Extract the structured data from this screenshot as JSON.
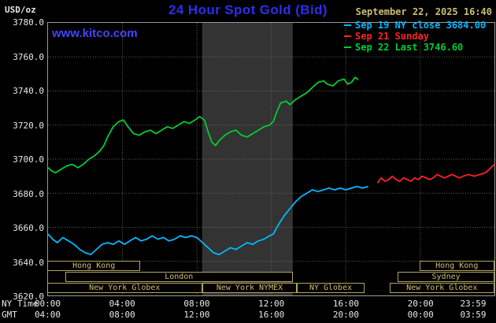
{
  "header": {
    "unit_label": "USD/oz",
    "title": "24 Hour Spot Gold (Bid)",
    "datetime": "September 22, 2025 16:40",
    "watermark": "www.kitco.com"
  },
  "legend": [
    {
      "id": "sep19-ny-close",
      "label": "Sep 19 NY close 3684.00",
      "color": "#00b8ff"
    },
    {
      "id": "sep21-sunday",
      "label": "Sep 21 Sunday",
      "color": "#ff2222"
    },
    {
      "id": "sep22-last",
      "label": "Sep 22 Last 3746.60",
      "color": "#00cc33"
    }
  ],
  "axes": {
    "y_ticks": [
      "3780.0",
      "3760.0",
      "3740.0",
      "3720.0",
      "3700.0",
      "3680.0",
      "3660.0",
      "3640.0",
      "3620.0"
    ],
    "x_rows": [
      {
        "label": "NY Time",
        "ticks": [
          "00:00",
          "04:00",
          "08:00",
          "12:00",
          "16:00",
          "20:00",
          "23:59"
        ]
      },
      {
        "label": "GMT",
        "ticks": [
          "04:00",
          "08:00",
          "12:00",
          "16:00",
          "20:00",
          "00:00",
          "03:59"
        ]
      }
    ]
  },
  "sessions": {
    "rows": [
      {
        "boxes": [
          {
            "label": "Hong Kong",
            "start": 0,
            "end": 5.0
          },
          {
            "label": "Hong Kong",
            "start": 19.95,
            "end": 23.983
          }
        ]
      },
      {
        "boxes": [
          {
            "label": "London",
            "start": 0.97,
            "end": 13.15
          },
          {
            "label": "Sydney",
            "start": 18.8,
            "end": 23.983
          }
        ]
      },
      {
        "boxes": [
          {
            "label": "New York Globex",
            "start": 0,
            "end": 8.3
          },
          {
            "label": "New York NYMEX",
            "start": 8.3,
            "end": 13.4
          },
          {
            "label": "NY Globex",
            "start": 13.4,
            "end": 17.0
          },
          {
            "label": "New York Globex",
            "start": 18.35,
            "end": 23.983
          }
        ]
      }
    ]
  },
  "chart_data": {
    "type": "line",
    "title": "24 Hour Spot Gold (Bid)",
    "subtitle": "September 22, 2025 16:40",
    "ylabel": "USD/oz",
    "grid": true,
    "legend_position": "top-right",
    "y_axis": {
      "range": [
        3620,
        3780
      ],
      "tick_step": 20
    },
    "x_axis": {
      "label_rows": [
        "NY Time",
        "GMT"
      ],
      "range_hours": [
        0,
        23.983
      ],
      "tick_hours": [
        0,
        4,
        8,
        12,
        16,
        20,
        23.983
      ],
      "tick_labels_ny": [
        "00:00",
        "04:00",
        "08:00",
        "12:00",
        "16:00",
        "20:00",
        "23:59"
      ],
      "tick_labels_gmt": [
        "04:00",
        "08:00",
        "12:00",
        "16:00",
        "20:00",
        "00:00",
        "03:59"
      ],
      "grid_hours": [
        4,
        8,
        12,
        16,
        20
      ]
    },
    "nymex_band_hours": [
      8.28,
      13.15
    ],
    "band_color": "#333333",
    "grid_color": "#666666",
    "series": [
      {
        "id": "sep19-ny-close",
        "name": "Sep 19 NY close 3684.00",
        "close_value": 3684.0,
        "color": "#00b8ff",
        "points": [
          [
            0,
            3656
          ],
          [
            0.25,
            3653
          ],
          [
            0.5,
            3651
          ],
          [
            0.8,
            3654
          ],
          [
            1.1,
            3652
          ],
          [
            1.4,
            3650
          ],
          [
            1.7,
            3647
          ],
          [
            2,
            3645
          ],
          [
            2.3,
            3644
          ],
          [
            2.6,
            3647
          ],
          [
            2.9,
            3650
          ],
          [
            3.2,
            3651
          ],
          [
            3.5,
            3650
          ],
          [
            3.8,
            3652
          ],
          [
            4.1,
            3650
          ],
          [
            4.4,
            3652
          ],
          [
            4.7,
            3654
          ],
          [
            5,
            3652
          ],
          [
            5.3,
            3653
          ],
          [
            5.6,
            3655
          ],
          [
            5.9,
            3653
          ],
          [
            6.2,
            3654
          ],
          [
            6.5,
            3652
          ],
          [
            6.8,
            3653
          ],
          [
            7.1,
            3655
          ],
          [
            7.4,
            3654
          ],
          [
            7.7,
            3655
          ],
          [
            8,
            3654
          ],
          [
            8.3,
            3651
          ],
          [
            8.6,
            3648
          ],
          [
            8.9,
            3645
          ],
          [
            9.2,
            3644
          ],
          [
            9.5,
            3646
          ],
          [
            9.8,
            3648
          ],
          [
            10.1,
            3647
          ],
          [
            10.4,
            3649
          ],
          [
            10.7,
            3651
          ],
          [
            11,
            3650
          ],
          [
            11.3,
            3652
          ],
          [
            11.6,
            3653
          ],
          [
            11.9,
            3655
          ],
          [
            12.1,
            3656
          ],
          [
            12.4,
            3662
          ],
          [
            12.7,
            3667
          ],
          [
            13,
            3671
          ],
          [
            13.3,
            3675
          ],
          [
            13.6,
            3678
          ],
          [
            13.9,
            3680
          ],
          [
            14.2,
            3682
          ],
          [
            14.5,
            3681
          ],
          [
            14.8,
            3682
          ],
          [
            15.1,
            3683
          ],
          [
            15.4,
            3682
          ],
          [
            15.7,
            3683
          ],
          [
            16,
            3682
          ],
          [
            16.3,
            3683
          ],
          [
            16.6,
            3684
          ],
          [
            16.9,
            3683
          ],
          [
            17.2,
            3684
          ]
        ]
      },
      {
        "id": "sep21-sunday",
        "name": "Sep 21 Sunday",
        "color": "#ff2222",
        "points": [
          [
            17.7,
            3686
          ],
          [
            17.9,
            3689
          ],
          [
            18.1,
            3687
          ],
          [
            18.3,
            3688
          ],
          [
            18.5,
            3690
          ],
          [
            18.7,
            3688
          ],
          [
            18.9,
            3687
          ],
          [
            19.1,
            3689
          ],
          [
            19.3,
            3688
          ],
          [
            19.5,
            3687
          ],
          [
            19.7,
            3689
          ],
          [
            19.9,
            3688
          ],
          [
            20.1,
            3690
          ],
          [
            20.3,
            3689
          ],
          [
            20.5,
            3688
          ],
          [
            20.7,
            3689
          ],
          [
            20.9,
            3691
          ],
          [
            21.1,
            3690
          ],
          [
            21.3,
            3689
          ],
          [
            21.5,
            3690
          ],
          [
            21.7,
            3691
          ],
          [
            21.9,
            3690
          ],
          [
            22.1,
            3689
          ],
          [
            22.3,
            3690
          ],
          [
            22.6,
            3691
          ],
          [
            22.9,
            3690
          ],
          [
            23.2,
            3691
          ],
          [
            23.5,
            3692
          ],
          [
            23.7,
            3694
          ],
          [
            23.983,
            3697
          ]
        ]
      },
      {
        "id": "sep22-last",
        "name": "Sep 22 Last 3746.60",
        "last_value": 3746.6,
        "color": "#00cc33",
        "points": [
          [
            0,
            3695
          ],
          [
            0.2,
            3693
          ],
          [
            0.4,
            3692
          ],
          [
            0.7,
            3694
          ],
          [
            1,
            3696
          ],
          [
            1.3,
            3697
          ],
          [
            1.6,
            3695
          ],
          [
            1.9,
            3697
          ],
          [
            2.2,
            3700
          ],
          [
            2.5,
            3702
          ],
          [
            2.8,
            3705
          ],
          [
            3,
            3708
          ],
          [
            3.2,
            3713
          ],
          [
            3.5,
            3719
          ],
          [
            3.8,
            3722
          ],
          [
            4.05,
            3723
          ],
          [
            4.3,
            3719
          ],
          [
            4.6,
            3715
          ],
          [
            4.9,
            3714
          ],
          [
            5.2,
            3716
          ],
          [
            5.5,
            3717
          ],
          [
            5.8,
            3715
          ],
          [
            6.1,
            3717
          ],
          [
            6.4,
            3719
          ],
          [
            6.7,
            3718
          ],
          [
            7,
            3720
          ],
          [
            7.3,
            3722
          ],
          [
            7.6,
            3721
          ],
          [
            7.9,
            3723
          ],
          [
            8.15,
            3725
          ],
          [
            8.4,
            3723
          ],
          [
            8.6,
            3716
          ],
          [
            8.8,
            3710
          ],
          [
            9,
            3708
          ],
          [
            9.2,
            3711
          ],
          [
            9.5,
            3714
          ],
          [
            9.8,
            3716
          ],
          [
            10.1,
            3717
          ],
          [
            10.4,
            3714
          ],
          [
            10.7,
            3713
          ],
          [
            11,
            3715
          ],
          [
            11.3,
            3717
          ],
          [
            11.6,
            3719
          ],
          [
            11.9,
            3720
          ],
          [
            12.1,
            3722
          ],
          [
            12.3,
            3728
          ],
          [
            12.5,
            3733
          ],
          [
            12.8,
            3734
          ],
          [
            13,
            3732
          ],
          [
            13.3,
            3735
          ],
          [
            13.6,
            3737
          ],
          [
            13.9,
            3739
          ],
          [
            14.2,
            3742
          ],
          [
            14.5,
            3745
          ],
          [
            14.8,
            3746
          ],
          [
            15,
            3744
          ],
          [
            15.3,
            3743
          ],
          [
            15.6,
            3746
          ],
          [
            15.9,
            3747
          ],
          [
            16.1,
            3744
          ],
          [
            16.3,
            3745
          ],
          [
            16.5,
            3748
          ],
          [
            16.67,
            3746.6
          ]
        ]
      }
    ]
  }
}
